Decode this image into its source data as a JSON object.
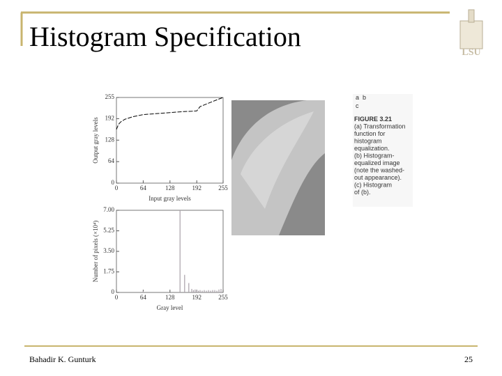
{
  "header": {
    "title": "Histogram Specification",
    "logo": "LSU"
  },
  "figure": {
    "panel_labels": [
      "a",
      "b",
      "c"
    ],
    "caption": [
      "FIGURE 3.21",
      "(a) Transformation",
      "function for",
      "histogram",
      "equalization.",
      "(b) Histogram-",
      "equalized image",
      "(note the washed-",
      "out appearance).",
      "(c) Histogram",
      "of (b)."
    ]
  },
  "chart_data": [
    {
      "type": "line",
      "x_label": "Input gray levels",
      "y_label": "Output gray levels",
      "x": [
        0,
        5,
        10,
        20,
        40,
        64,
        96,
        128,
        160,
        180,
        192,
        200,
        220,
        240,
        255
      ],
      "values": [
        160,
        175,
        182,
        190,
        198,
        204,
        207,
        210,
        213,
        214,
        215,
        228,
        238,
        248,
        255
      ],
      "color": "#000000",
      "xlim": [
        0,
        255
      ],
      "ylim": [
        0,
        255
      ],
      "xticks": [
        0,
        64,
        128,
        192,
        255
      ],
      "yticks": [
        0,
        64,
        128,
        192,
        255
      ]
    },
    {
      "type": "bar",
      "x_label": "Gray level",
      "y_label": "Number of pixels (×10⁴)",
      "x": [
        64,
        152,
        163,
        173,
        180,
        184,
        188,
        192,
        196,
        200,
        205,
        210,
        215,
        220,
        225,
        230,
        235,
        240,
        245,
        250
      ],
      "values": [
        0.1,
        7.0,
        1.5,
        0.8,
        0.3,
        0.2,
        0.25,
        0.2,
        0.15,
        0.2,
        0.15,
        0.2,
        0.15,
        0.2,
        0.15,
        0.2,
        0.2,
        0.15,
        0.25,
        0.3
      ],
      "color": "#a8a0a8",
      "xlim": [
        0,
        255
      ],
      "ylim": [
        0,
        7
      ],
      "xticks": [
        0,
        64,
        128,
        192,
        255
      ],
      "yticks": [
        0,
        1.75,
        {
          "value": 3.5,
          "label": "3.50"
        },
        5.25,
        {
          "value": 7,
          "label": "7.00"
        }
      ]
    }
  ],
  "footer": {
    "author": "Bahadir K. Gunturk",
    "page": "25"
  }
}
